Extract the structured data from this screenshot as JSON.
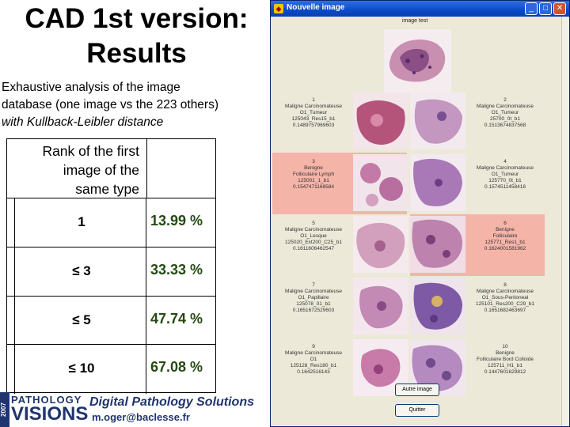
{
  "slide": {
    "title_line1": "CAD 1st version:",
    "title_line2": "Results",
    "desc_line1": "Exhaustive analysis of the image",
    "desc_line2": "database (one image vs the 223 others)",
    "desc_line3": "with Kullback-Leibler distance",
    "table": {
      "header_line1": "Rank of the first",
      "header_line2": "image of the",
      "header_line3": "same type",
      "rows": [
        {
          "rank": "1",
          "pct": "13.99 %"
        },
        {
          "rank": "≤ 3",
          "pct": "33.33 %"
        },
        {
          "rank": "≤ 5",
          "pct": "47.74 %"
        },
        {
          "rank": "≤ 10",
          "pct": "67.08 %"
        }
      ]
    },
    "logo_year": "2007",
    "logo_top": "PATHOLOGY",
    "logo_bottom": "VISIONS",
    "footer_title": "Digital Pathology Solutions",
    "footer_email": "m.oger@baclesse.fr"
  },
  "window": {
    "title": "Nouvelle image",
    "query_label": "image test",
    "results": [
      {
        "num": "1",
        "l1": "Maligne Carcinomateuse",
        "l2": "O1_Tumeur",
        "l3": "125043_Res15_b1",
        "l4": "0.1489757969603",
        "hl": false
      },
      {
        "num": "2",
        "l1": "Maligne Carcinomateuse",
        "l2": "O1_Tumeur",
        "l3": "25700_0t_b1",
        "l4": "0.1513674837568",
        "hl": false
      },
      {
        "num": "3",
        "l1": "Benigne",
        "l2": "Folliculaire Lymph",
        "l3": "125001_1_b1",
        "l4": "0.1547471168584",
        "hl": true
      },
      {
        "num": "4",
        "l1": "Maligne Carcinomateuse",
        "l2": "O1_Tumeur",
        "l3": "125770_0t_b1",
        "l4": "0.1574511458418",
        "hl": false
      },
      {
        "num": "5",
        "l1": "Maligne Carcinomateuse",
        "l2": "O1_Lesque",
        "l3": "125020_Ext200_C25_b1",
        "l4": "0.1611606462547",
        "hl": false
      },
      {
        "num": "6",
        "l1": "Benigne",
        "l2": "Folliculaire",
        "l3": "125771_Res1_b1",
        "l4": "0.1624001581962",
        "hl": true
      },
      {
        "num": "7",
        "l1": "Maligne Carcinomateuse",
        "l2": "O1_Papillaire",
        "l3": "125078_01_b1",
        "l4": "0.1651672529603",
        "hl": false
      },
      {
        "num": "8",
        "l1": "Maligne Carcinomateuse",
        "l2": "O1_Sous-Peritoneal",
        "l3": "125101_Res200_C29_b1",
        "l4": "0.1651682463697",
        "hl": false
      },
      {
        "num": "9",
        "l1": "Maligne Carcinomateuse",
        "l2": "O1",
        "l3": "125128_Res180_b1",
        "l4": "0.1642516143",
        "hl": false
      },
      {
        "num": "10",
        "l1": "Benigne",
        "l2": "Folliculaire Bord Colloide",
        "l3": "125711_H1_b1",
        "l4": "0.1447601629812",
        "hl": false
      }
    ],
    "buttons": {
      "other": "Autre image",
      "quit": "Quitter"
    }
  }
}
